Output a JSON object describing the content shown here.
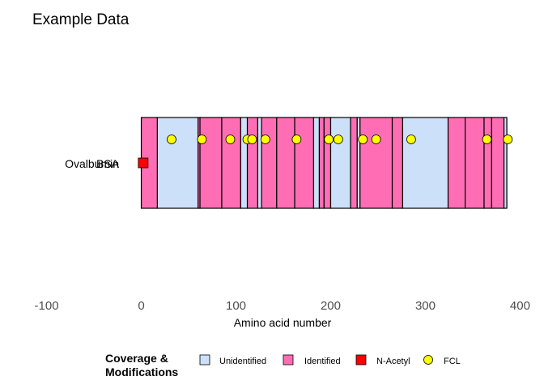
{
  "chart_data": {
    "type": "bar",
    "title": "Example Data",
    "xlabel": "Amino acid number",
    "xlim": [
      -115,
      415
    ],
    "x_ticks": [
      -100,
      0,
      100,
      200,
      300,
      400
    ],
    "proteins": [
      "Ovalbumin",
      "BSA"
    ],
    "protein_length": 386,
    "coverage": [
      {
        "start": 0,
        "end": 17,
        "type": "Identified"
      },
      {
        "start": 17,
        "end": 60,
        "type": "Unidentified"
      },
      {
        "start": 60,
        "end": 62,
        "type": "Identified"
      },
      {
        "start": 62,
        "end": 85,
        "type": "Identified"
      },
      {
        "start": 85,
        "end": 105,
        "type": "Identified"
      },
      {
        "start": 105,
        "end": 112,
        "type": "Unidentified"
      },
      {
        "start": 112,
        "end": 123,
        "type": "Identified"
      },
      {
        "start": 123,
        "end": 127,
        "type": "Unidentified"
      },
      {
        "start": 127,
        "end": 143,
        "type": "Identified"
      },
      {
        "start": 143,
        "end": 162,
        "type": "Identified"
      },
      {
        "start": 162,
        "end": 182,
        "type": "Identified"
      },
      {
        "start": 182,
        "end": 188,
        "type": "Unidentified"
      },
      {
        "start": 188,
        "end": 193,
        "type": "Identified"
      },
      {
        "start": 193,
        "end": 200,
        "type": "Identified"
      },
      {
        "start": 200,
        "end": 221,
        "type": "Unidentified"
      },
      {
        "start": 221,
        "end": 228,
        "type": "Identified"
      },
      {
        "start": 228,
        "end": 231,
        "type": "Unidentified"
      },
      {
        "start": 231,
        "end": 265,
        "type": "Identified"
      },
      {
        "start": 265,
        "end": 276,
        "type": "Identified"
      },
      {
        "start": 276,
        "end": 324,
        "type": "Unidentified"
      },
      {
        "start": 324,
        "end": 342,
        "type": "Identified"
      },
      {
        "start": 342,
        "end": 362,
        "type": "Identified"
      },
      {
        "start": 362,
        "end": 370,
        "type": "Identified"
      },
      {
        "start": 370,
        "end": 383,
        "type": "Identified"
      },
      {
        "start": 383,
        "end": 386,
        "type": "Unidentified"
      }
    ],
    "modifications": [
      {
        "type": "N-Acetyl",
        "positions": [
          2
        ]
      },
      {
        "type": "FCL",
        "positions": [
          32,
          64,
          94,
          112,
          117,
          131,
          164,
          198,
          208,
          234,
          248,
          285,
          365,
          387
        ]
      }
    ],
    "colors": {
      "Unidentified": "#cce0fa",
      "Identified": "#ff6eb4",
      "N-Acetyl": "#ff0000",
      "FCL": "#ffff00",
      "outline": "#000000"
    },
    "legend": {
      "title_line1": "Coverage &",
      "title_line2": "Modifications",
      "items": [
        "Unidentified",
        "Identified",
        "N-Acetyl",
        "FCL"
      ],
      "placement": "bottom"
    },
    "grid": false
  }
}
